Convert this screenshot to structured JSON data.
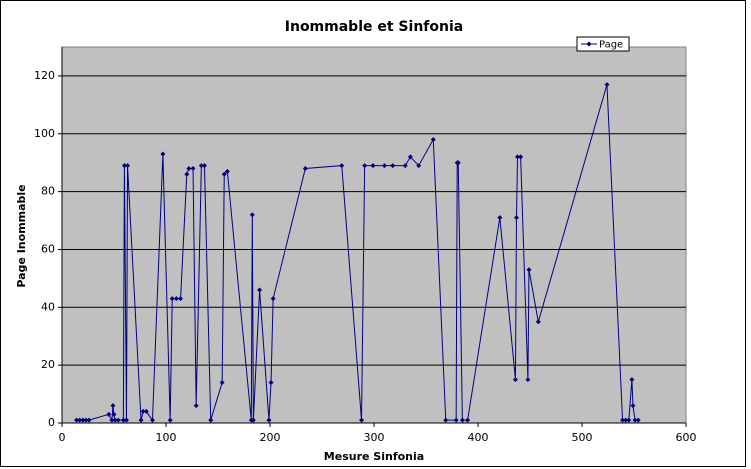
{
  "chart_data": {
    "type": "line",
    "title": "Inommable et Sinfonia",
    "x_label": "Mesure Sinfonia",
    "y_label": "Page Inommable",
    "xlim": [
      0,
      600
    ],
    "xticks": [
      0,
      100,
      200,
      300,
      400,
      500,
      600
    ],
    "ylim": [
      0,
      130
    ],
    "yticks": [
      0,
      20,
      40,
      60,
      80,
      100,
      120
    ],
    "grid": true,
    "legend": "top-right",
    "series": [
      {
        "name": "Page",
        "color": "#000080",
        "x": [
          14,
          17,
          20,
          23,
          26,
          45,
          48,
          49,
          50,
          51,
          54,
          59,
          60,
          62,
          63,
          76,
          78,
          81,
          87,
          97,
          104,
          106,
          110,
          114,
          120,
          122,
          126,
          129,
          134,
          137,
          143,
          154,
          156,
          159,
          182,
          183,
          184,
          190,
          199,
          201,
          203,
          234,
          269,
          288,
          291,
          299,
          310,
          318,
          330,
          335,
          343,
          357,
          369,
          379,
          380,
          381,
          385,
          390,
          421,
          436,
          437,
          438,
          441,
          448,
          449,
          458,
          524,
          539,
          542,
          545,
          548,
          549,
          551,
          554
        ],
        "values": [
          1,
          1,
          1,
          1,
          1,
          3,
          1,
          6,
          3,
          1,
          1,
          1,
          89,
          1,
          89,
          1,
          4,
          4,
          1,
          93,
          1,
          43,
          43,
          43,
          86,
          88,
          88,
          6,
          89,
          89,
          1,
          14,
          86,
          87,
          1,
          72,
          1,
          46,
          1,
          14,
          43,
          88,
          89,
          1,
          89,
          89,
          89,
          89,
          89,
          92,
          89,
          98,
          1,
          1,
          90,
          90,
          1,
          1,
          71,
          15,
          71,
          92,
          92,
          15,
          53,
          35,
          117,
          1,
          1,
          1,
          15,
          6,
          1,
          1
        ]
      }
    ]
  }
}
